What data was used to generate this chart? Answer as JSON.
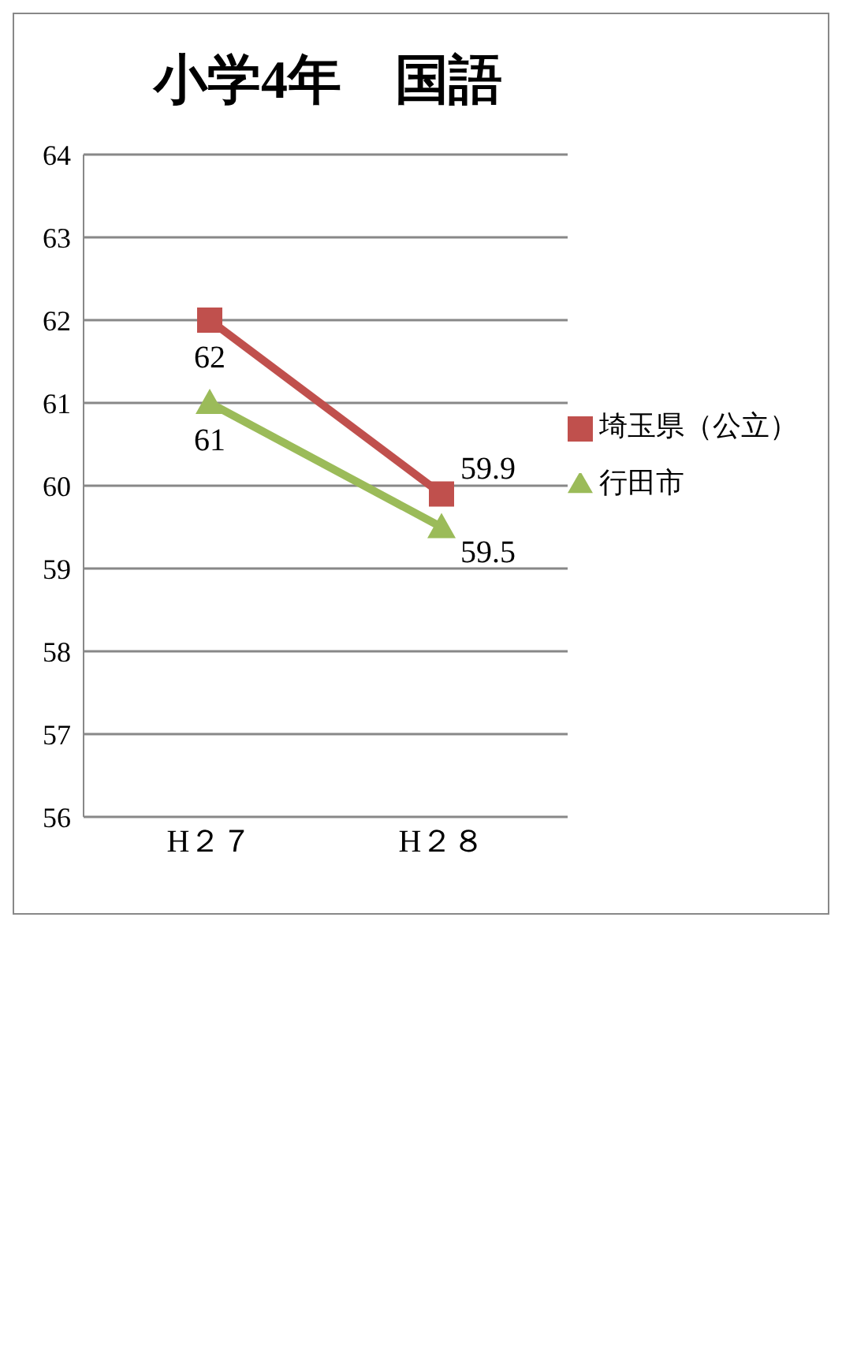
{
  "chart_data": {
    "type": "line",
    "title": "小学4年　国語",
    "categories": [
      "H２７",
      "H２８"
    ],
    "series": [
      {
        "name": "埼玉県（公立）",
        "color": "#c0504d",
        "marker": "square",
        "values": [
          62,
          59.9
        ]
      },
      {
        "name": "行田市",
        "color": "#9bbb59",
        "marker": "triangle",
        "values": [
          61,
          59.5
        ]
      }
    ],
    "ylim": [
      56,
      64
    ],
    "yticks": [
      56,
      57,
      58,
      59,
      60,
      61,
      62,
      63,
      64
    ],
    "grid": "y",
    "legend": "right",
    "data_labels": true
  }
}
